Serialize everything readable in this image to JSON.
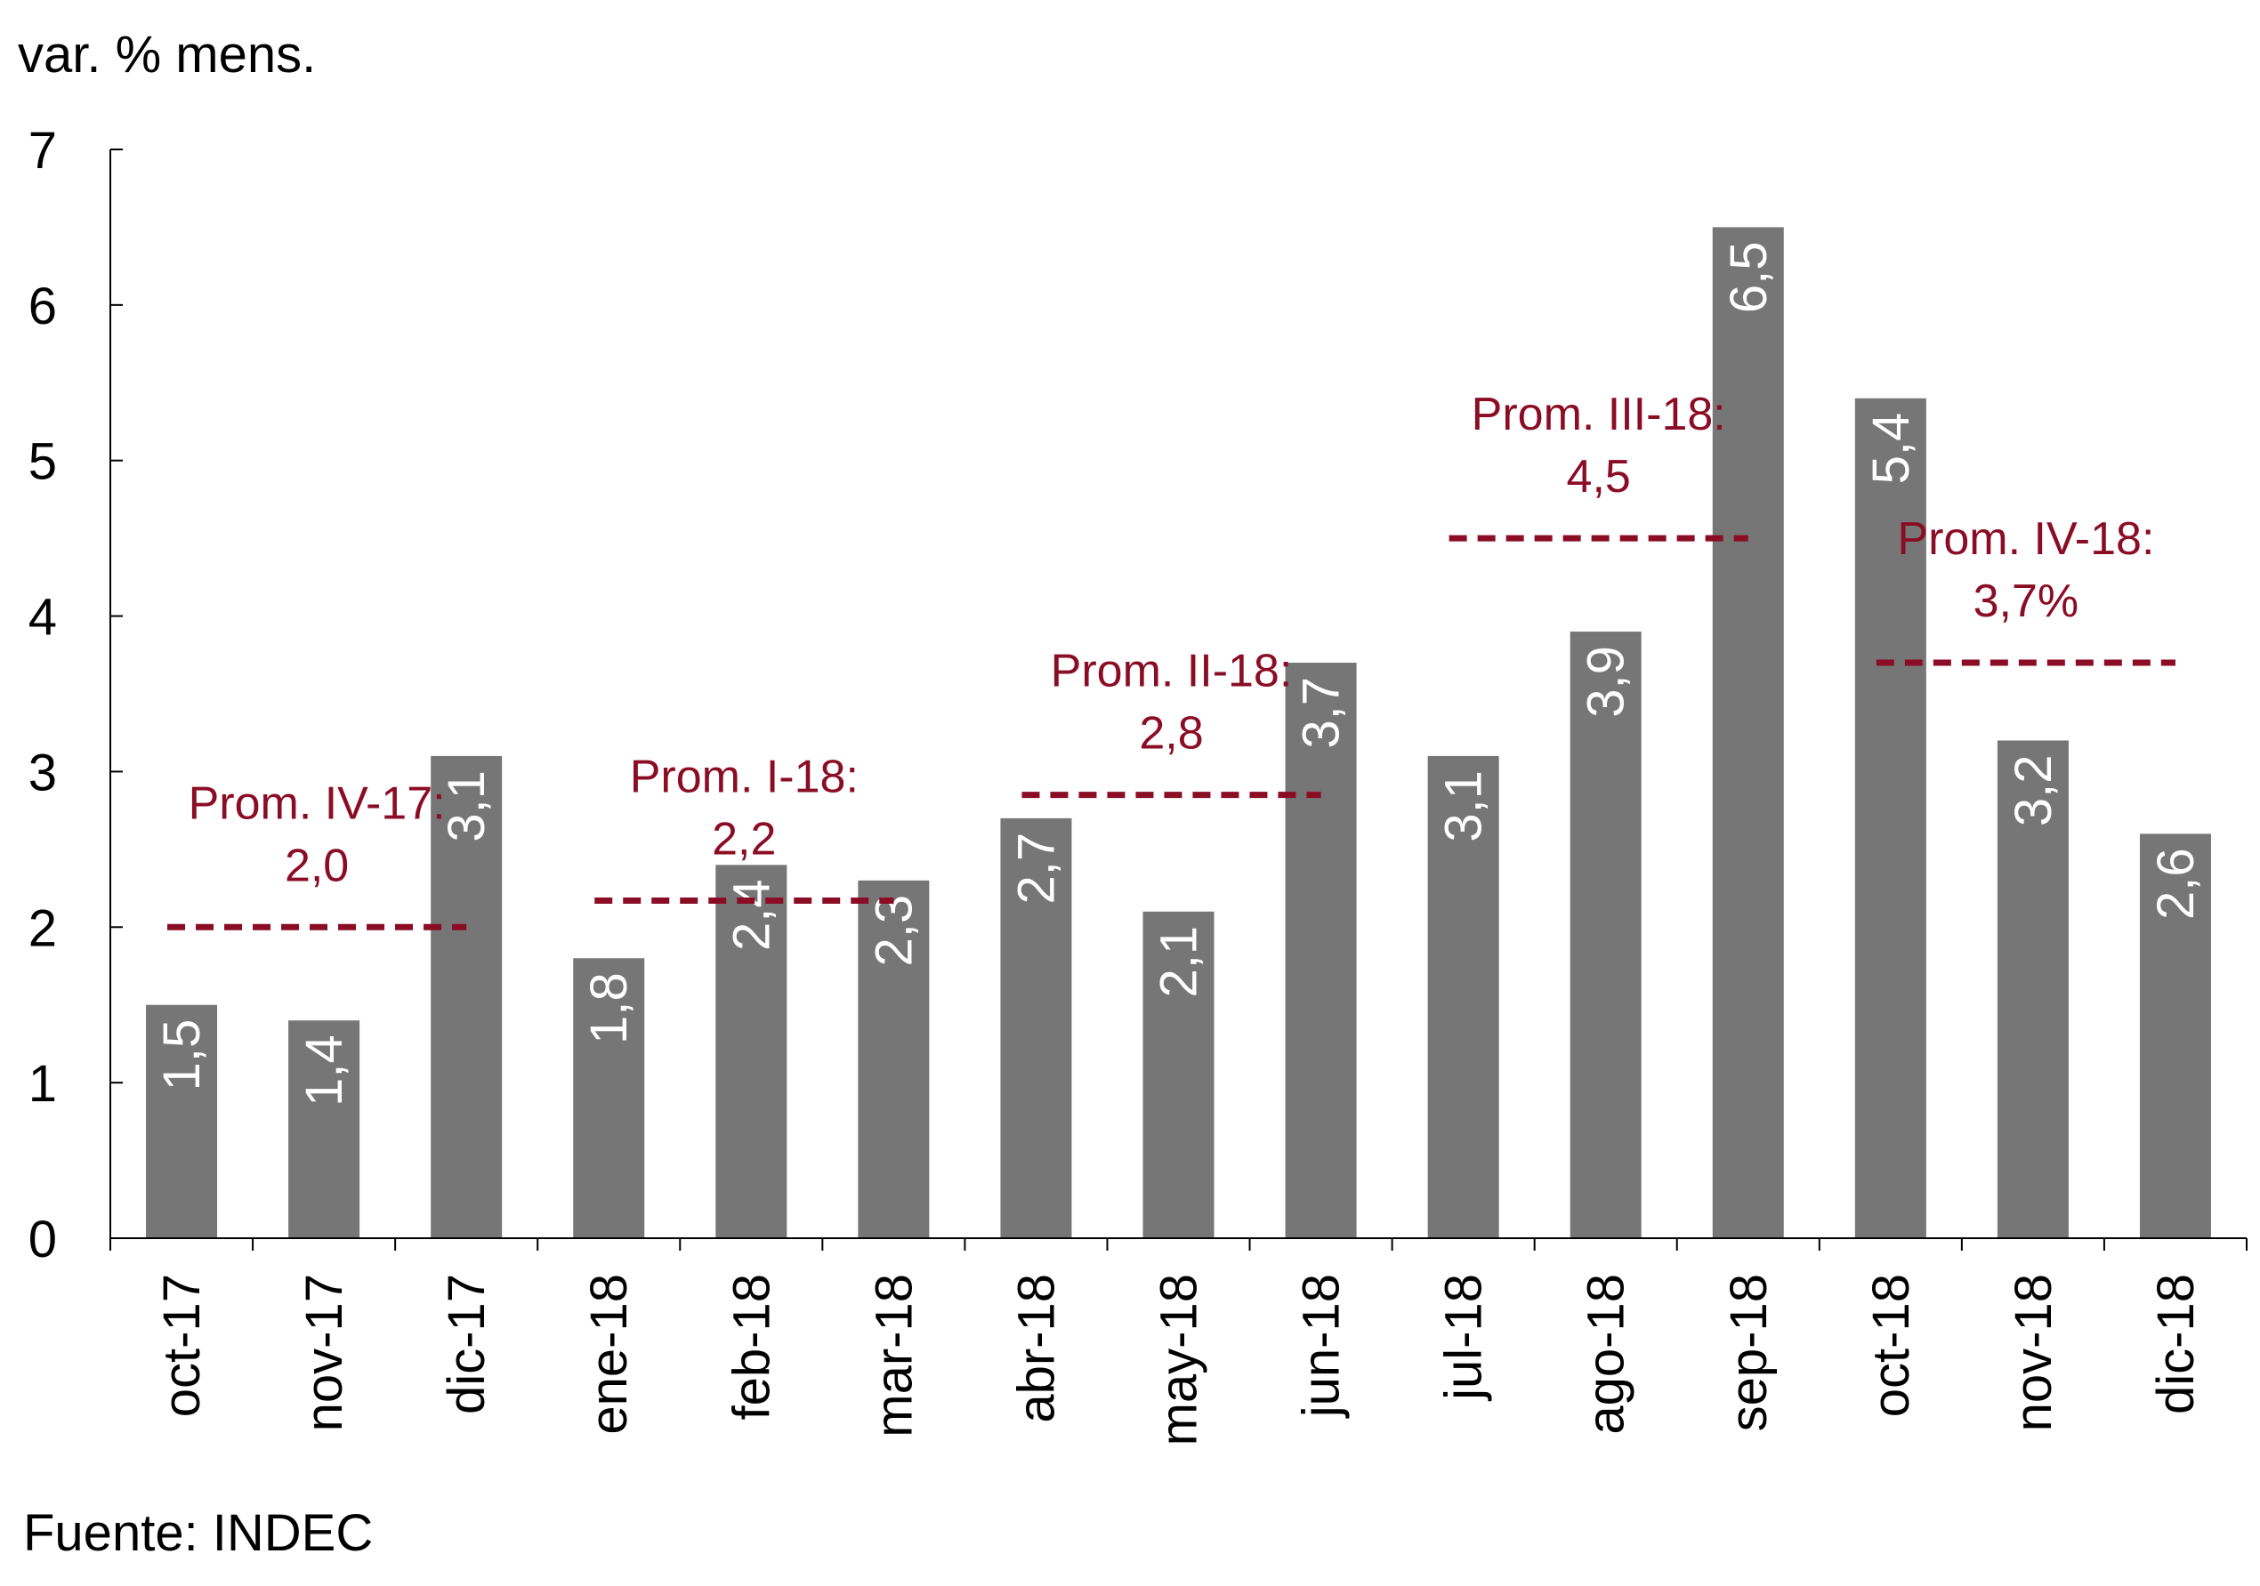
{
  "chart_data": {
    "type": "bar",
    "ylabel": "var. % mens.",
    "ylim": [
      0,
      7
    ],
    "yticks": [
      0,
      1,
      2,
      3,
      4,
      5,
      6,
      7
    ],
    "categories": [
      "oct-17",
      "nov-17",
      "dic-17",
      "ene-18",
      "feb-18",
      "mar-18",
      "abr-18",
      "may-18",
      "jun-18",
      "jul-18",
      "ago-18",
      "sep-18",
      "oct-18",
      "nov-18",
      "dic-18"
    ],
    "values": [
      1.5,
      1.4,
      3.1,
      1.8,
      2.4,
      2.3,
      2.7,
      2.1,
      3.7,
      3.1,
      3.9,
      6.5,
      5.4,
      3.2,
      2.6
    ],
    "value_labels": [
      "1,5",
      "1,4",
      "3,1",
      "1,8",
      "2,4",
      "2,3",
      "2,7",
      "2,1",
      "3,7",
      "3,1",
      "3,9",
      "6,5",
      "5,4",
      "3,2",
      "2,6"
    ],
    "bar_color": "#767676",
    "averages": [
      {
        "label": "Prom. IV-17:",
        "value_label": "2,0",
        "value": 2.0,
        "from": "oct-17",
        "to": "dic-17"
      },
      {
        "label": "Prom. I-18:",
        "value_label": "2,2",
        "value": 2.17,
        "from": "ene-18",
        "to": "mar-18"
      },
      {
        "label": "Prom. II-18:",
        "value_label": "2,8",
        "value": 2.85,
        "from": "abr-18",
        "to": "jun-18"
      },
      {
        "label": "Prom. III-18:",
        "value_label": "4,5",
        "value": 4.5,
        "from": "jul-18",
        "to": "sep-18"
      },
      {
        "label": "Prom. IV-18:",
        "value_label": "3,7%",
        "value": 3.7,
        "from": "oct-18",
        "to": "dic-18"
      }
    ],
    "average_color": "#8b0d25"
  },
  "source": "Fuente: INDEC"
}
